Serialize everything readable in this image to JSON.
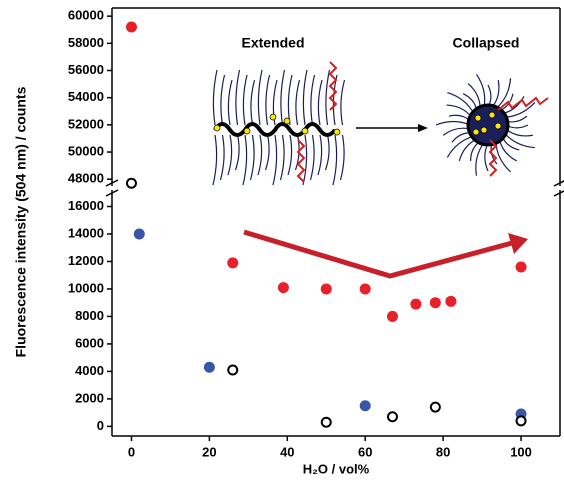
{
  "chart_data": [
    {
      "type": "scatter",
      "ylabel": "Fluorescence intensity (504 nm) / counts",
      "annotations": [
        "Extended",
        "Collapsed"
      ],
      "xlim": [
        -5,
        110
      ],
      "ylim": [
        47500,
        60600
      ],
      "yticks": [
        48000,
        50000,
        52000,
        54000,
        56000,
        58000,
        60000
      ],
      "series": [
        {
          "color": "#e8202a",
          "marker": "filled",
          "x": [
            0
          ],
          "values": [
            59200
          ]
        },
        {
          "color": "#000000",
          "marker": "open",
          "x": [
            0
          ],
          "values": [
            47700
          ]
        }
      ]
    },
    {
      "type": "scatter",
      "xlabel": "H₂O / vol%",
      "xlim": [
        -5,
        110
      ],
      "ylim": [
        -700,
        17200
      ],
      "xticks": [
        0,
        20,
        40,
        60,
        80,
        100
      ],
      "yticks": [
        0,
        2000,
        4000,
        6000,
        8000,
        10000,
        12000,
        14000,
        16000
      ],
      "series": [
        {
          "color": "#e8202a",
          "marker": "filled",
          "x": [
            26,
            39,
            50,
            60,
            67,
            73,
            78,
            82,
            100
          ],
          "values": [
            11900,
            10100,
            10000,
            10000,
            8000,
            8900,
            9000,
            9100,
            11600
          ]
        },
        {
          "color": "#3a56a8",
          "marker": "filled",
          "x": [
            2,
            20,
            60,
            100
          ],
          "values": [
            14000,
            4300,
            1500,
            900
          ]
        },
        {
          "color": "#000000",
          "marker": "open",
          "x": [
            26,
            50,
            67,
            78,
            100
          ],
          "values": [
            4100,
            300,
            700,
            1400,
            400
          ]
        }
      ]
    }
  ]
}
